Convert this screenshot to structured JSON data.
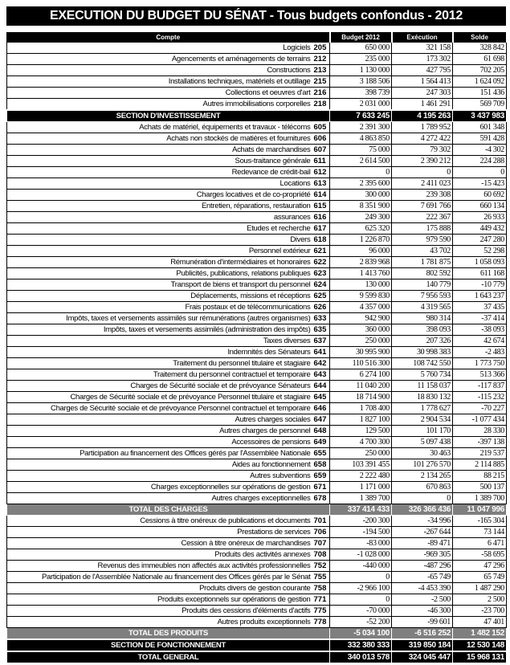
{
  "title": "EXECUTION DU BUDGET DU SÉNAT - Tous budgets confondus - 2012",
  "headers": [
    "Compte",
    "Budget 2012",
    "Exécution",
    "Solde"
  ],
  "rows": [
    {
      "label": "Logiciels",
      "code": "205",
      "budget": "650 000",
      "execution": "321 158",
      "solde": "328 842"
    },
    {
      "label": "Agencements et aménagements de terrains",
      "code": "212",
      "budget": "235 000",
      "execution": "173 302",
      "solde": "61 698"
    },
    {
      "label": "Constructions",
      "code": "213",
      "budget": "1 130 000",
      "execution": "427 795",
      "solde": "702 205"
    },
    {
      "label": "Installations techniques, matériels et outillage",
      "code": "215",
      "budget": "3 188 506",
      "execution": "1 564 413",
      "solde": "1 624 092"
    },
    {
      "label": "Collections et oeuvres d'art",
      "code": "216",
      "budget": "398 739",
      "execution": "247 303",
      "solde": "151 436"
    },
    {
      "label": "Autres immobilisations corporelles",
      "code": "218",
      "budget": "2 031 000",
      "execution": "1 461 291",
      "solde": "569 709"
    },
    {
      "label": "SECTION D'INVESTISSEMENT",
      "code": "",
      "budget": "7 633 245",
      "execution": "4 195 263",
      "solde": "3 437 983",
      "style": "black"
    },
    {
      "label": "Achats de matériel, équipements et travaux - télécoms",
      "code": "605",
      "budget": "2 391 300",
      "execution": "1 789 952",
      "solde": "601 348"
    },
    {
      "label": "Achats non stockés de matières et fournitures",
      "code": "606",
      "budget": "4 863 850",
      "execution": "4 272 422",
      "solde": "591 428"
    },
    {
      "label": "Achats de marchandises",
      "code": "607",
      "budget": "75 000",
      "execution": "79 302",
      "solde": "-4 302"
    },
    {
      "label": "Sous-traitance générale",
      "code": "611",
      "budget": "2 614 500",
      "execution": "2 390 212",
      "solde": "224 288"
    },
    {
      "label": "Redevance de crédit-bail",
      "code": "612",
      "budget": "0",
      "execution": "0",
      "solde": "0"
    },
    {
      "label": "Locations",
      "code": "613",
      "budget": "2 395 600",
      "execution": "2 411 023",
      "solde": "-15 423"
    },
    {
      "label": "Charges locatives et de co-propriété",
      "code": "614",
      "budget": "300 000",
      "execution": "239 308",
      "solde": "60 692"
    },
    {
      "label": "Entretien, réparations, restauration",
      "code": "615",
      "budget": "8 351 900",
      "execution": "7 691 766",
      "solde": "660 134"
    },
    {
      "label": "assurances",
      "code": "616",
      "budget": "249 300",
      "execution": "222 367",
      "solde": "26 933"
    },
    {
      "label": "Etudes et recherche",
      "code": "617",
      "budget": "625 320",
      "execution": "175 888",
      "solde": "449 432"
    },
    {
      "label": "Divers",
      "code": "618",
      "budget": "1 226 870",
      "execution": "979 590",
      "solde": "247 280"
    },
    {
      "label": "Personnel extérieur",
      "code": "621",
      "budget": "96 000",
      "execution": "43 702",
      "solde": "52 298"
    },
    {
      "label": "Rémunération d'intermédiaires et honoraires",
      "code": "622",
      "budget": "2 839 968",
      "execution": "1 781 875",
      "solde": "1 058 093"
    },
    {
      "label": "Publicités, publications, relations publiques",
      "code": "623",
      "budget": "1 413 760",
      "execution": "802 592",
      "solde": "611 168"
    },
    {
      "label": "Transport de biens et transport du personnel",
      "code": "624",
      "budget": "130 000",
      "execution": "140 779",
      "solde": "-10 779"
    },
    {
      "label": "Déplacements, missions et réceptions",
      "code": "625",
      "budget": "9 599 830",
      "execution": "7 956 593",
      "solde": "1 643 237"
    },
    {
      "label": "Frais postaux et de télécommunications",
      "code": "626",
      "budget": "4 357 000",
      "execution": "4 319 565",
      "solde": "37 435"
    },
    {
      "label": "Impôts, taxes et versements assimilés sur rémunérations (autres organismes)",
      "code": "633",
      "budget": "942 900",
      "execution": "980 314",
      "solde": "-37 414"
    },
    {
      "label": "Impôts, taxes et versements assimilés (administration des impôts)",
      "code": "635",
      "budget": "360 000",
      "execution": "398 093",
      "solde": "-38 093"
    },
    {
      "label": "Taxes diverses",
      "code": "637",
      "budget": "250 000",
      "execution": "207 326",
      "solde": "42 674"
    },
    {
      "label": "Indemnités des Sénateurs",
      "code": "641",
      "budget": "30 995 900",
      "execution": "30 998 383",
      "solde": "-2 483"
    },
    {
      "label": "Traitement du personnel titulaire et stagiaire",
      "code": "642",
      "budget": "110 516 300",
      "execution": "108 742 550",
      "solde": "1 773 750"
    },
    {
      "label": "Traitement du personnel contractuel et temporaire",
      "code": "643",
      "budget": "6 274 100",
      "execution": "5 760 734",
      "solde": "513 366"
    },
    {
      "label": "Charges de Sécurité sociale et de prévoyance Sénateurs",
      "code": "644",
      "budget": "11 040 200",
      "execution": "11 158 037",
      "solde": "-117 837"
    },
    {
      "label": "Charges de Sécurité sociale et de prévoyance Personnel titulaire et stagiaire",
      "code": "645",
      "budget": "18 714 900",
      "execution": "18 830 132",
      "solde": "-115 232"
    },
    {
      "label": "Charges de Sécurité sociale et de prévoyance Personnel contractuel et temporaire",
      "code": "646",
      "budget": "1 708 400",
      "execution": "1 778 627",
      "solde": "-70 227"
    },
    {
      "label": "Autres charges sociales",
      "code": "647",
      "budget": "1 827 100",
      "execution": "2 904 534",
      "solde": "-1 077 434"
    },
    {
      "label": "Autres charges de personnel",
      "code": "648",
      "budget": "129 500",
      "execution": "101 170",
      "solde": "28 330"
    },
    {
      "label": "Accessoires de pensions",
      "code": "649",
      "budget": "4 700 300",
      "execution": "5 097 438",
      "solde": "-397 138"
    },
    {
      "label": "Participation au financement des Offices gérés par l'Assemblée Nationale",
      "code": "655",
      "budget": "250 000",
      "execution": "30 463",
      "solde": "219 537"
    },
    {
      "label": "Aides au fonctionnement",
      "code": "658",
      "budget": "103 391 455",
      "execution": "101 276 570",
      "solde": "2 114 885"
    },
    {
      "label": "Autres subventions",
      "code": "659",
      "budget": "2 222 480",
      "execution": "2 134 265",
      "solde": "88 215"
    },
    {
      "label": "Charges exceptionnelles sur opérations de gestion",
      "code": "671",
      "budget": "1 171 000",
      "execution": "670 863",
      "solde": "500 137"
    },
    {
      "label": "Autres charges exceptionnelles",
      "code": "678",
      "budget": "1 389 700",
      "execution": "0",
      "solde": "1 389 700"
    },
    {
      "label": "TOTAL DES CHARGES",
      "code": "",
      "budget": "337 414 433",
      "execution": "326 366 436",
      "solde": "11 047 996",
      "style": "gray"
    },
    {
      "label": "Cessions à titre onéreux de publications et documents",
      "code": "701",
      "budget": "-200 300",
      "execution": "-34 996",
      "solde": "-165 304"
    },
    {
      "label": "Prestations de services",
      "code": "706",
      "budget": "-194 500",
      "execution": "-267 644",
      "solde": "73 144"
    },
    {
      "label": "Cession à titre onéreux de marchandises",
      "code": "707",
      "budget": "-83 000",
      "execution": "-89 471",
      "solde": "6 471"
    },
    {
      "label": "Produits des activités annexes",
      "code": "708",
      "budget": "-1 028 000",
      "execution": "-969 305",
      "solde": "-58 695"
    },
    {
      "label": "Revenus des immeubles non affectés aux activités professionnelles",
      "code": "752",
      "budget": "-440 000",
      "execution": "-487 296",
      "solde": "47 296"
    },
    {
      "label": "Participation de l'Assemblée Nationale au financement des Offices gérés par le Sénat",
      "code": "755",
      "budget": "0",
      "execution": "-65 749",
      "solde": "65 749"
    },
    {
      "label": "Produits divers de gestion courante",
      "code": "758",
      "budget": "-2 966 100",
      "execution": "-4 453 390",
      "solde": "1 487 290"
    },
    {
      "label": "Produits exceptionnels sur opérations de gestion",
      "code": "771",
      "budget": "0",
      "execution": "-2 500",
      "solde": "2 500"
    },
    {
      "label": "Produits des cessions d'éléments d'actifs",
      "code": "775",
      "budget": "-70 000",
      "execution": "-46 300",
      "solde": "-23 700"
    },
    {
      "label": "Autres produits exceptionnels",
      "code": "778",
      "budget": "-52 200",
      "execution": "-99 601",
      "solde": "47 401"
    },
    {
      "label": "TOTAL DES PRODUITS",
      "code": "",
      "budget": "-5 034 100",
      "execution": "-6 516 252",
      "solde": "1 482 152",
      "style": "gray"
    },
    {
      "label": "SECTION DE FONCTIONNEMENT",
      "code": "",
      "budget": "332 380 333",
      "execution": "319 850 184",
      "solde": "12 530 148",
      "style": "black"
    },
    {
      "label": "TOTAL GENERAL",
      "code": "",
      "budget": "340 013 578",
      "execution": "324 045 447",
      "solde": "15 968 131",
      "style": "black"
    }
  ]
}
